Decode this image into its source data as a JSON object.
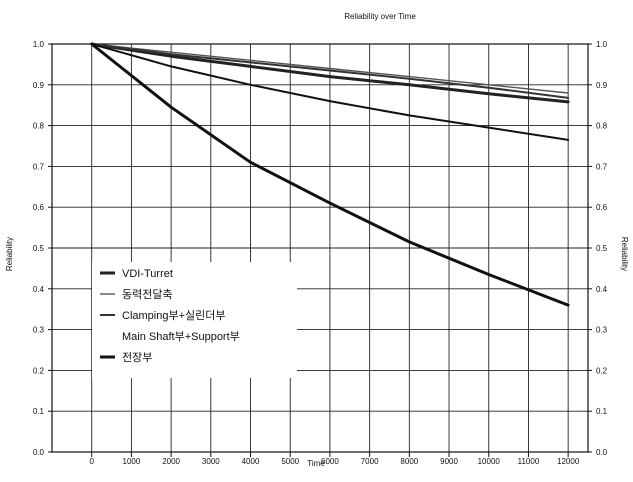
{
  "chart_data": {
    "type": "line",
    "title": "Reliability over Time",
    "xlabel": "Time",
    "ylabel": "Reliability",
    "ylabel_right": "Reliability",
    "xlim": [
      -1000,
      12500
    ],
    "ylim": [
      0.0,
      1.0
    ],
    "x_ticks": [
      0,
      1000,
      2000,
      3000,
      4000,
      5000,
      6000,
      7000,
      8000,
      9000,
      10000,
      11000,
      12000
    ],
    "y_ticks": [
      "0.0",
      "0.1",
      "0.2",
      "0.3",
      "0.4",
      "0.5",
      "0.6",
      "0.7",
      "0.8",
      "0.9",
      "1.0"
    ],
    "grid": true,
    "legend_position": "lower-left",
    "x": [
      0,
      2000,
      4000,
      6000,
      8000,
      10000,
      12000
    ],
    "series": [
      {
        "name": "VDI-Turret",
        "color": "#222222",
        "stroke": 3,
        "values": [
          1.0,
          0.97,
          0.945,
          0.92,
          0.9,
          0.878,
          0.858
        ]
      },
      {
        "name": "동력전달축",
        "color": "#555555",
        "stroke": 1.4,
        "values": [
          1.0,
          0.98,
          0.96,
          0.94,
          0.92,
          0.9,
          0.88
        ]
      },
      {
        "name": "Clamping부+실린더부",
        "color": "#333333",
        "stroke": 2,
        "values": [
          1.0,
          0.975,
          0.955,
          0.935,
          0.915,
          0.893,
          0.868
        ]
      },
      {
        "name": "Main Shaft부+Support부",
        "color": "#111111",
        "stroke": 2,
        "values": [
          1.0,
          0.945,
          0.9,
          0.86,
          0.825,
          0.795,
          0.765
        ]
      },
      {
        "name": "전장부",
        "color": "#111111",
        "stroke": 3,
        "values": [
          1.0,
          0.845,
          0.71,
          0.61,
          0.515,
          0.435,
          0.36
        ]
      }
    ]
  }
}
